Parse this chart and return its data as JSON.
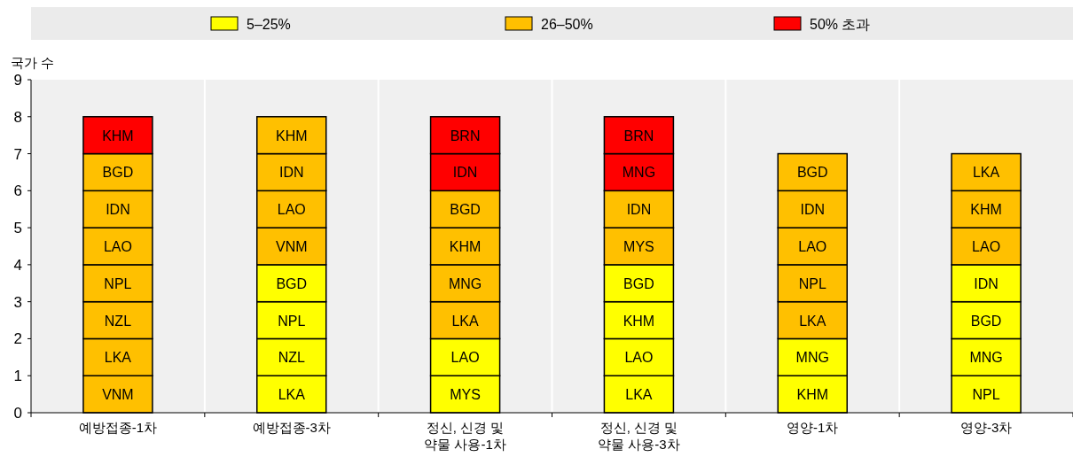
{
  "chart_data": {
    "type": "bar",
    "stacked": true,
    "ylabel": "국가 수",
    "categories": [
      "예방접종-1차",
      "예방접종-3차",
      "정신, 신경 및\n약물 사용-1차",
      "정신, 신경 및\n약물 사용-3차",
      "영양-1차",
      "영양-3차"
    ],
    "series": [
      {
        "values": [
          1,
          1,
          1,
          1,
          1,
          1
        ],
        "colors": [
          "#ffc000",
          "#ffff00",
          "#ffff00",
          "#ffff00",
          "#ffff00",
          "#ffff00"
        ],
        "value_labels": [
          "VNM",
          "LKA",
          "MYS",
          "LKA",
          "KHM",
          "NPL"
        ]
      },
      {
        "values": [
          1,
          1,
          1,
          1,
          1,
          1
        ],
        "colors": [
          "#ffc000",
          "#ffff00",
          "#ffff00",
          "#ffff00",
          "#ffff00",
          "#ffff00"
        ],
        "value_labels": [
          "LKA",
          "NZL",
          "LAO",
          "LAO",
          "MNG",
          "MNG"
        ]
      },
      {
        "values": [
          1,
          1,
          1,
          1,
          1,
          1
        ],
        "colors": [
          "#ffc000",
          "#ffff00",
          "#ffc000",
          "#ffff00",
          "#ffc000",
          "#ffff00"
        ],
        "value_labels": [
          "NZL",
          "NPL",
          "LKA",
          "KHM",
          "LKA",
          "BGD"
        ]
      },
      {
        "values": [
          1,
          1,
          1,
          1,
          1,
          1
        ],
        "colors": [
          "#ffc000",
          "#ffff00",
          "#ffc000",
          "#ffff00",
          "#ffc000",
          "#ffff00"
        ],
        "value_labels": [
          "NPL",
          "BGD",
          "MNG",
          "BGD",
          "NPL",
          "IDN"
        ]
      },
      {
        "values": [
          1,
          1,
          1,
          1,
          1,
          1
        ],
        "colors": [
          "#ffc000",
          "#ffc000",
          "#ffc000",
          "#ffc000",
          "#ffc000",
          "#ffc000"
        ],
        "value_labels": [
          "LAO",
          "VNM",
          "KHM",
          "MYS",
          "LAO",
          "LAO"
        ]
      },
      {
        "values": [
          1,
          1,
          1,
          1,
          1,
          1
        ],
        "colors": [
          "#ffc000",
          "#ffc000",
          "#ffc000",
          "#ffc000",
          "#ffc000",
          "#ffc000"
        ],
        "value_labels": [
          "IDN",
          "LAO",
          "BGD",
          "IDN",
          "IDN",
          "KHM"
        ]
      },
      {
        "values": [
          1,
          1,
          1,
          1,
          1,
          1
        ],
        "colors": [
          "#ffc000",
          "#ffc000",
          "#ff0000",
          "#ff0000",
          "#ffc000",
          "#ffc000"
        ],
        "value_labels": [
          "BGD",
          "IDN",
          "IDN",
          "MNG",
          "BGD",
          "LKA"
        ]
      },
      {
        "values": [
          1,
          1,
          1,
          1,
          null,
          null
        ],
        "colors": [
          "#ff0000",
          "#ffc000",
          "#ff0000",
          "#ff0000",
          null,
          null
        ],
        "value_labels": [
          "KHM",
          "KHM",
          "BRN",
          "BRN",
          null,
          null
        ]
      },
      {
        "name": "5–25%",
        "color": "#ffff00",
        "values": [
          null,
          null,
          null,
          null,
          null,
          null
        ]
      },
      {
        "name": "26–50%",
        "color": "#ffc000",
        "values": [
          null,
          null,
          null,
          null,
          null,
          null
        ]
      },
      {
        "name": "50% 초과",
        "color": "#ff0000",
        "values": [
          null,
          null,
          null,
          null,
          null,
          null
        ]
      }
    ],
    "ylim": [
      0,
      9
    ],
    "yticks": [
      0,
      1,
      2,
      3,
      4,
      5,
      6,
      7,
      8,
      9
    ],
    "grid": "x",
    "legend": "top"
  }
}
